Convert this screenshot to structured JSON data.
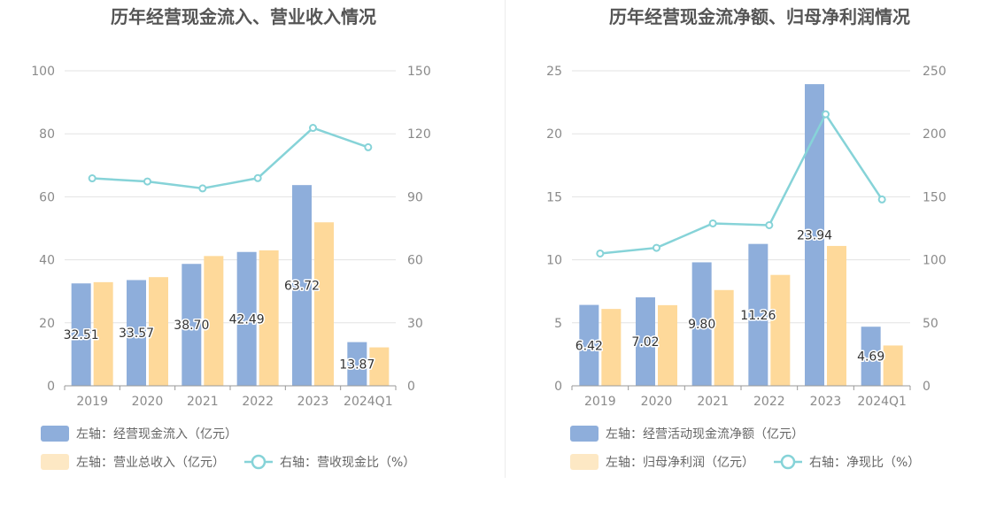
{
  "colors": {
    "bar_primary": "#8eaedb",
    "bar_secondary": "#fed99a",
    "legend_secondary": "#fde8c4",
    "line": "#86d3d8",
    "grid": "#e3e3e3",
    "axis": "#999999"
  },
  "chart_data": [
    {
      "type": "bar",
      "title": "历年经营现金流入、营业收入情况",
      "categories": [
        "2019",
        "2020",
        "2021",
        "2022",
        "2023",
        "2024Q1"
      ],
      "y_left": {
        "ylim": [
          0,
          100
        ],
        "ticks": [
          0,
          20,
          40,
          60,
          80,
          100
        ]
      },
      "y_right": {
        "ylim": [
          0,
          150
        ],
        "ticks": [
          0,
          30,
          60,
          90,
          120,
          150
        ]
      },
      "grid": true,
      "legend_position": "bottom-left",
      "series": [
        {
          "name": "左轴：经营现金流入（亿元）",
          "type": "bar",
          "axis": "left",
          "color_key": "bar_primary",
          "legend_color_key": "bar_primary",
          "values": [
            32.51,
            33.57,
            38.7,
            42.49,
            63.72,
            13.87
          ],
          "labels": [
            "32.51",
            "33.57",
            "38.70",
            "42.49",
            "63.72",
            "13.87"
          ]
        },
        {
          "name": "左轴：营业总收入（亿元）",
          "type": "bar",
          "axis": "left",
          "color_key": "bar_secondary",
          "legend_color_key": "legend_secondary",
          "values": [
            32.9,
            34.5,
            41.2,
            43.0,
            51.9,
            12.2
          ]
        },
        {
          "name": "右轴：营收现金比（%）",
          "type": "line",
          "axis": "right",
          "color_key": "line",
          "values": [
            98.8,
            97.3,
            94.0,
            98.9,
            122.8,
            113.6
          ]
        }
      ]
    },
    {
      "type": "bar",
      "title": "历年经营现金流净额、归母净利润情况",
      "categories": [
        "2019",
        "2020",
        "2021",
        "2022",
        "2023",
        "2024Q1"
      ],
      "y_left": {
        "ylim": [
          0,
          25
        ],
        "ticks": [
          0,
          5,
          10,
          15,
          20,
          25
        ]
      },
      "y_right": {
        "ylim": [
          0,
          250
        ],
        "ticks": [
          0,
          50,
          100,
          150,
          200,
          250
        ]
      },
      "grid": true,
      "legend_position": "bottom-left",
      "series": [
        {
          "name": "左轴：经营活动现金流净额（亿元）",
          "type": "bar",
          "axis": "left",
          "color_key": "bar_primary",
          "legend_color_key": "bar_primary",
          "values": [
            6.42,
            7.02,
            9.8,
            11.26,
            23.94,
            4.69
          ],
          "labels": [
            "6.42",
            "7.02",
            "9.80",
            "11.26",
            "23.94",
            "4.69"
          ]
        },
        {
          "name": "左轴：归母净利润（亿元）",
          "type": "bar",
          "axis": "left",
          "color_key": "bar_secondary",
          "legend_color_key": "legend_secondary",
          "values": [
            6.1,
            6.4,
            7.6,
            8.8,
            11.1,
            3.2
          ]
        },
        {
          "name": "右轴：净现比（%）",
          "type": "line",
          "axis": "right",
          "color_key": "line",
          "values": [
            105.0,
            109.5,
            128.9,
            127.5,
            215.5,
            147.9
          ]
        }
      ]
    }
  ]
}
